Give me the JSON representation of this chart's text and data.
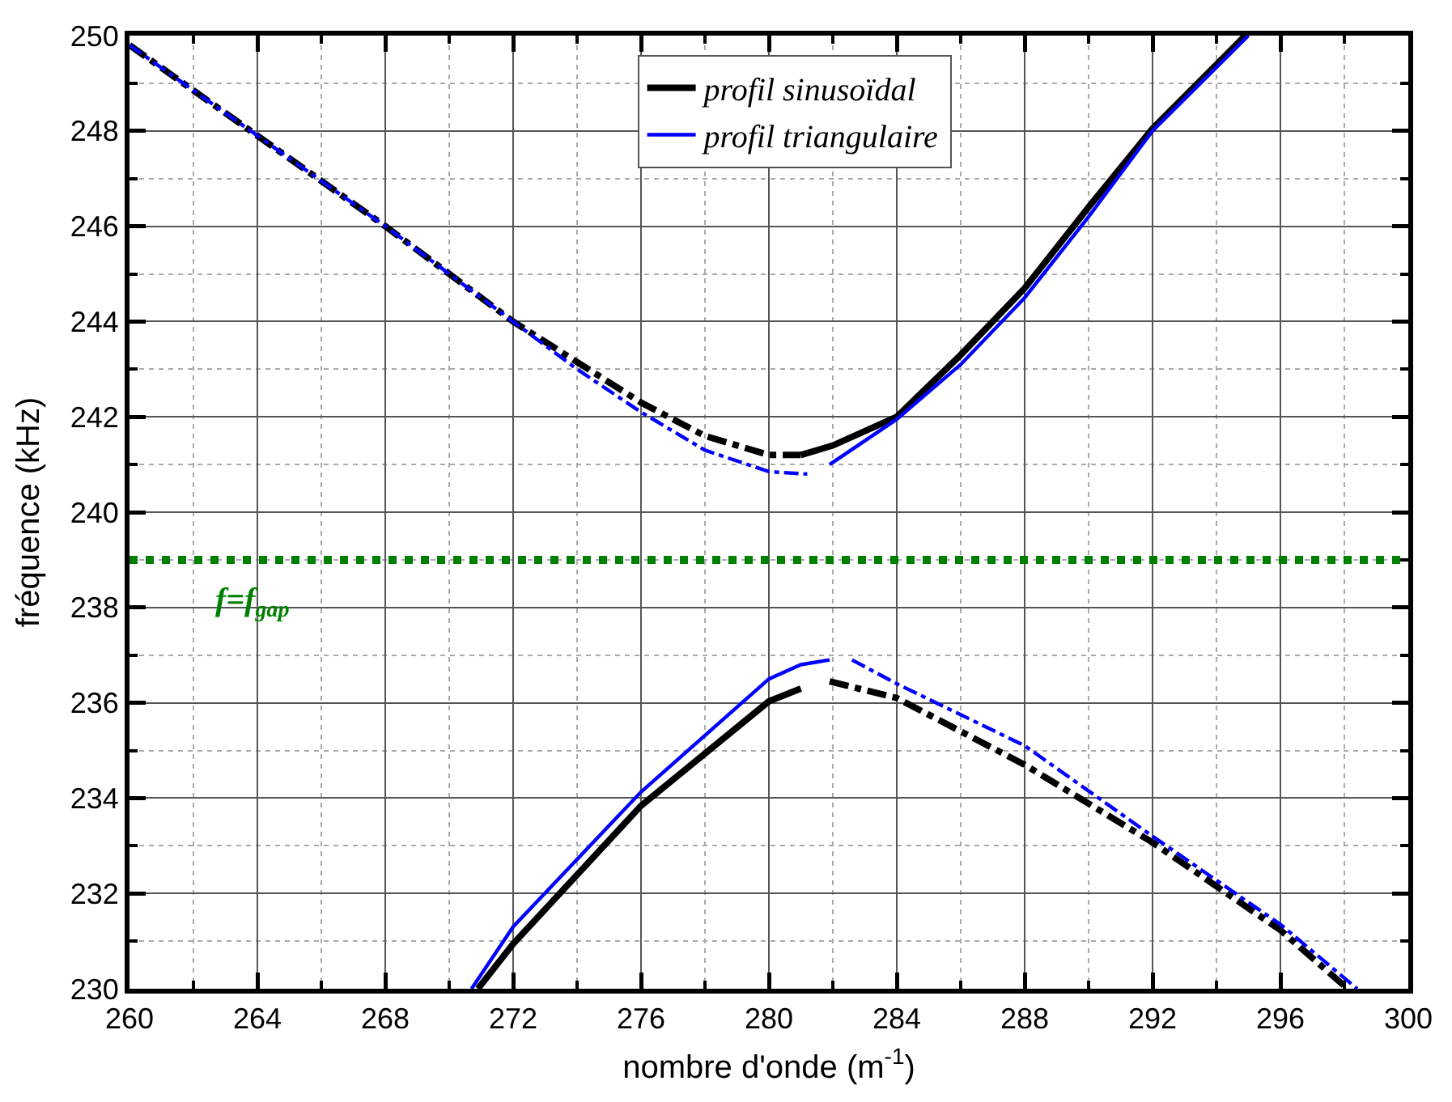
{
  "chart_data": {
    "type": "line",
    "xlabel": "nombre d'onde (m$^{-1}$)",
    "ylabel": "fréquence (kHz)",
    "xlim": [
      260,
      300
    ],
    "ylim": [
      230,
      250
    ],
    "xticks": [
      260,
      {
        "value": 262,
        "label": null
      },
      264,
      {
        "value": 266,
        "label": null
      },
      268,
      {
        "value": 270,
        "label": null
      },
      272,
      {
        "value": 274,
        "label": null
      },
      276,
      {
        "value": 278,
        "label": null
      },
      280,
      {
        "value": 282,
        "label": null
      },
      284,
      {
        "value": 286,
        "label": null
      },
      288,
      {
        "value": 290,
        "label": null
      },
      292,
      {
        "value": 294,
        "label": null
      },
      296,
      {
        "value": 298,
        "label": null
      },
      300
    ],
    "yticks": [
      230,
      {
        "value": 231,
        "label": null
      },
      232,
      {
        "value": 233,
        "label": null
      },
      234,
      {
        "value": 235,
        "label": null
      },
      236,
      {
        "value": 237,
        "label": null
      },
      238,
      {
        "value": 239,
        "label": null
      },
      240,
      {
        "value": 241,
        "label": null
      },
      242,
      {
        "value": 243,
        "label": null
      },
      244,
      {
        "value": 245,
        "label": null
      },
      246,
      {
        "value": 247,
        "label": null
      },
      248,
      {
        "value": 249,
        "label": null
      },
      250
    ],
    "grid": true,
    "legend": "top",
    "marker": "none",
    "series": [
      {
        "name": "profil sinusoïdal",
        "color": "#000000",
        "line_style": "solid",
        "x": [
          281,
          282,
          284,
          286,
          288,
          290,
          292,
          294.9
        ],
        "values": [
          241.2,
          241.4,
          242,
          243.3,
          244.7,
          246.4,
          248.05,
          250
        ]
      },
      {
        "name": "profil triangulaire",
        "color": "#0000ff",
        "line_style": "solid",
        "x": [
          281.9,
          284,
          286,
          288,
          290,
          292,
          295
        ],
        "values": [
          241,
          241.95,
          243.1,
          244.5,
          246.2,
          248,
          250
        ]
      },
      {
        "color": "#000000",
        "line_style": "dashdot",
        "x": [
          260,
          264,
          268,
          272,
          276,
          278,
          280,
          281
        ],
        "values": [
          249.8,
          247.9,
          246,
          244,
          242.3,
          241.6,
          241.2,
          241.2
        ]
      },
      {
        "color": "#0000ff",
        "line_style": "dashdot",
        "x": [
          260,
          264,
          268,
          272,
          274,
          276,
          278,
          280,
          281.2
        ],
        "values": [
          249.8,
          247.9,
          246,
          244,
          243,
          242.1,
          241.3,
          240.85,
          240.8
        ]
      },
      {
        "color": "#000000",
        "line_style": "solid",
        "x": [
          270.9,
          272,
          276,
          280,
          281
        ],
        "values": [
          230,
          230.94,
          233.84,
          236.03,
          236.3
        ]
      },
      {
        "color": "#0000ff",
        "line_style": "solid",
        "x": [
          270.7,
          272,
          276,
          280,
          281,
          281.9
        ],
        "values": [
          230,
          231.3,
          234.13,
          236.5,
          236.8,
          236.9
        ]
      },
      {
        "color": "#000000",
        "line_style": "dashdot",
        "x": [
          281.9,
          284,
          288,
          292,
          296,
          298.1
        ],
        "values": [
          236.45,
          236.1,
          234.7,
          233.07,
          231.23,
          230
        ]
      },
      {
        "color": "#0000ff",
        "line_style": "dashdot",
        "x": [
          282.6,
          284,
          288,
          292,
          296,
          298.4
        ],
        "values": [
          236.9,
          236.4,
          235.1,
          233.2,
          231.35,
          230
        ]
      }
    ],
    "ref_lines": [
      {
        "axis": "y",
        "value": 239,
        "label": "f=f$_{gap}$",
        "color": "#008000",
        "line_style": "dotted"
      }
    ]
  }
}
